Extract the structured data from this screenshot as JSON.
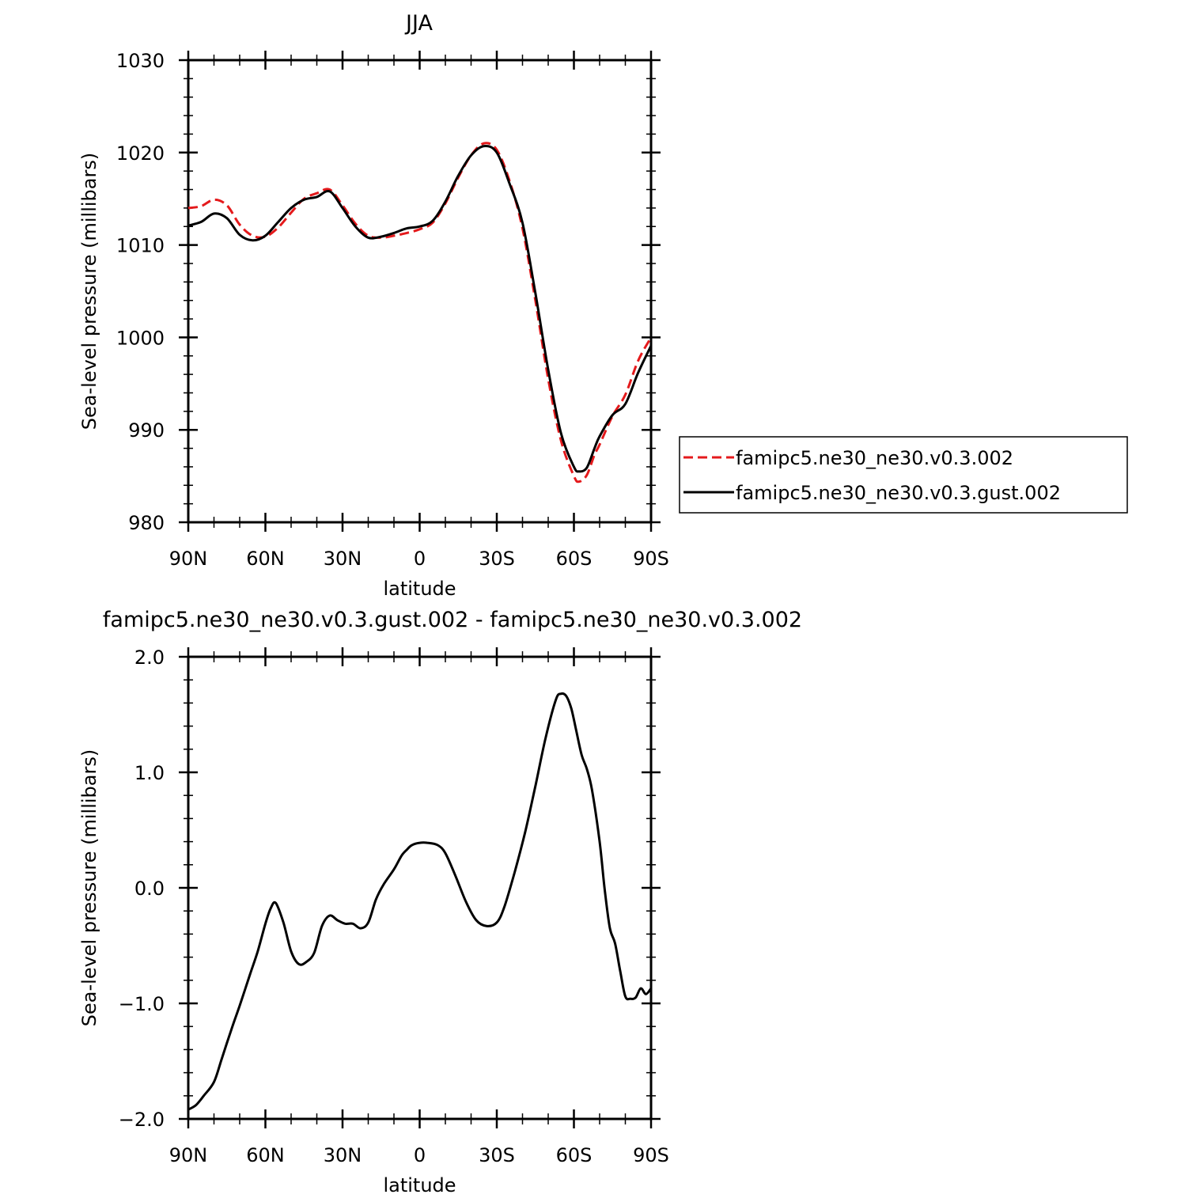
{
  "chart_data": [
    {
      "type": "line",
      "title": "JJA",
      "xlabel": "latitude",
      "ylabel": "Sea-level pressure (millibars)",
      "xlim": [
        90,
        -90
      ],
      "ylim": [
        980,
        1030
      ],
      "x_tick_values": [
        90,
        60,
        30,
        0,
        -30,
        -60,
        -90
      ],
      "x_tick_labels": [
        "90N",
        "60N",
        "30N",
        "0",
        "30S",
        "60S",
        "90S"
      ],
      "y_tick_values": [
        980,
        990,
        1000,
        1010,
        1020,
        1030
      ],
      "y_tick_labels": [
        "980",
        "990",
        "1000",
        "1010",
        "1020",
        "1030"
      ],
      "grid": false,
      "legend_position": "right",
      "series": [
        {
          "name": "famipc5.ne30_ne30.v0.3.002",
          "color": "#e41a1c",
          "dash": "dashed",
          "x": [
            90,
            85,
            80,
            75,
            70,
            65,
            60,
            55,
            50,
            45,
            40,
            35,
            30,
            25,
            20,
            15,
            10,
            5,
            0,
            -5,
            -10,
            -15,
            -20,
            -25,
            -30,
            -35,
            -40,
            -45,
            -50,
            -55,
            -60,
            -62,
            -65,
            -68,
            -70,
            -75,
            -80,
            -85,
            -90
          ],
          "y": [
            1014,
            1014.2,
            1014.9,
            1014.3,
            1012.2,
            1011,
            1010.9,
            1011.9,
            1013.5,
            1015,
            1015.6,
            1016,
            1014.3,
            1012.3,
            1011,
            1010.8,
            1011,
            1011.3,
            1011.7,
            1012.4,
            1014.5,
            1017.3,
            1019.7,
            1021,
            1020.3,
            1016.9,
            1011.8,
            1004,
            995.5,
            988.8,
            985,
            984.4,
            985.1,
            987.3,
            988.4,
            991.5,
            993.8,
            997.5,
            1000
          ]
        },
        {
          "name": "famipc5.ne30_ne30.v0.3.gust.002",
          "color": "#000000",
          "dash": "solid",
          "x": [
            90,
            85,
            80,
            75,
            70,
            65,
            60,
            55,
            50,
            45,
            40,
            35,
            30,
            25,
            20,
            15,
            10,
            5,
            0,
            -5,
            -10,
            -15,
            -20,
            -25,
            -30,
            -35,
            -40,
            -45,
            -50,
            -55,
            -60,
            -62,
            -65,
            -68,
            -70,
            -75,
            -80,
            -85,
            -90
          ],
          "y": [
            1012.1,
            1012.5,
            1013.4,
            1012.9,
            1011.1,
            1010.5,
            1011,
            1012.5,
            1014,
            1014.9,
            1015.2,
            1015.8,
            1014,
            1012,
            1010.8,
            1010.9,
            1011.3,
            1011.8,
            1012,
            1012.6,
            1014.7,
            1017.5,
            1019.7,
            1020.7,
            1020,
            1016.6,
            1012.4,
            1004.8,
            996.5,
            989.6,
            986,
            985.5,
            985.9,
            988,
            989.3,
            991.6,
            992.8,
            996.2,
            999.1
          ]
        }
      ]
    },
    {
      "type": "line",
      "title": "famipc5.ne30_ne30.v0.3.gust.002 - famipc5.ne30_ne30.v0.3.002",
      "xlabel": "latitude",
      "ylabel": "Sea-level pressure (millibars)",
      "xlim": [
        90,
        -90
      ],
      "ylim": [
        -2.0,
        2.0
      ],
      "x_tick_values": [
        90,
        60,
        30,
        0,
        -30,
        -60,
        -90
      ],
      "x_tick_labels": [
        "90N",
        "60N",
        "30N",
        "0",
        "30S",
        "60S",
        "90S"
      ],
      "y_tick_values": [
        -2,
        -1,
        0,
        1,
        2
      ],
      "y_tick_labels": [
        "-2.0",
        "-1.0",
        "0.0",
        "1.0",
        "2.0"
      ],
      "grid": false,
      "series": [
        {
          "color": "#000000",
          "dash": "solid",
          "x": [
            90,
            87,
            84,
            80,
            77,
            73,
            70,
            66,
            63,
            60,
            58,
            56,
            53,
            50,
            47,
            44,
            41,
            38,
            35,
            32,
            29,
            26,
            23,
            20,
            17,
            14,
            10,
            7,
            5,
            3,
            0,
            -3,
            -7,
            -10,
            -14,
            -18,
            -22,
            -26,
            -30,
            -33,
            -37,
            -41,
            -45,
            -49,
            -53,
            -55,
            -57,
            -59,
            -61,
            -63,
            -65,
            -67,
            -70,
            -72,
            -74,
            -76,
            -78,
            -80,
            -82,
            -84,
            -86,
            -88,
            -90
          ],
          "y": [
            -1.92,
            -1.88,
            -1.8,
            -1.68,
            -1.48,
            -1.21,
            -1.02,
            -0.75,
            -0.55,
            -0.31,
            -0.18,
            -0.13,
            -0.3,
            -0.55,
            -0.66,
            -0.64,
            -0.56,
            -0.33,
            -0.24,
            -0.28,
            -0.31,
            -0.31,
            -0.35,
            -0.3,
            -0.1,
            0.03,
            0.16,
            0.28,
            0.33,
            0.37,
            0.39,
            0.39,
            0.37,
            0.3,
            0.1,
            -0.12,
            -0.28,
            -0.33,
            -0.3,
            -0.16,
            0.14,
            0.48,
            0.88,
            1.3,
            1.63,
            1.68,
            1.66,
            1.55,
            1.35,
            1.15,
            1.03,
            0.85,
            0.4,
            -0.02,
            -0.35,
            -0.48,
            -0.72,
            -0.94,
            -0.96,
            -0.95,
            -0.87,
            -0.92,
            -0.87
          ]
        }
      ]
    }
  ]
}
